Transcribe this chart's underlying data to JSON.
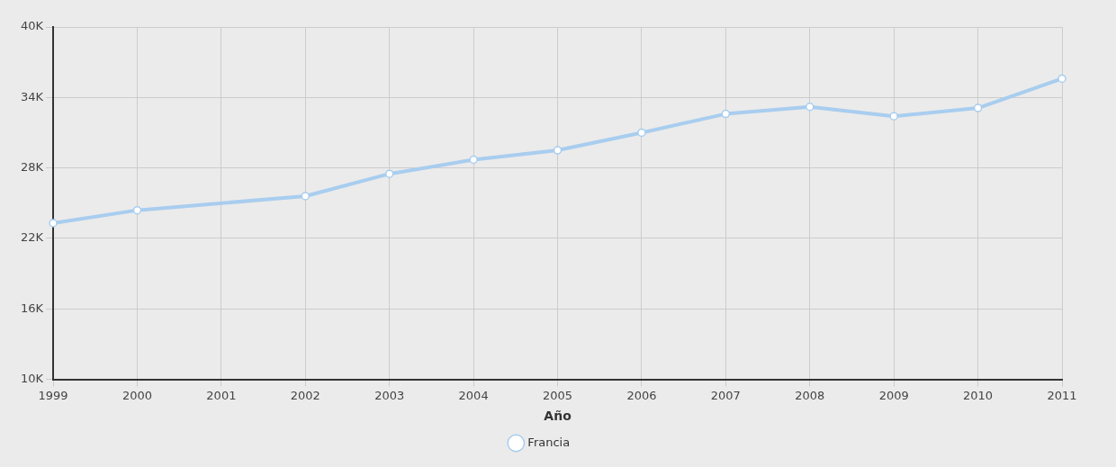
{
  "chart_data": {
    "type": "line",
    "xlabel": "Año",
    "categories": [
      "1999",
      "2000",
      "2001",
      "2002",
      "2003",
      "2004",
      "2005",
      "2006",
      "2007",
      "2008",
      "2009",
      "2010",
      "2011"
    ],
    "series": [
      {
        "name": "Francia",
        "color": "#a8cdef",
        "values": [
          23300,
          24400,
          null,
          25600,
          27500,
          28700,
          29500,
          31000,
          32600,
          33200,
          32400,
          33100,
          35600
        ]
      }
    ],
    "ylim": [
      10000,
      40000
    ],
    "yticks": [
      {
        "value": 10000,
        "label": "10K"
      },
      {
        "value": 16000,
        "label": "16K"
      },
      {
        "value": 22000,
        "label": "22K"
      },
      {
        "value": 28000,
        "label": "28K"
      },
      {
        "value": 34000,
        "label": "34K"
      },
      {
        "value": 40000,
        "label": "40K"
      }
    ],
    "grid": true,
    "legend": "bottom",
    "marker": "circle",
    "line_style": "solid"
  }
}
